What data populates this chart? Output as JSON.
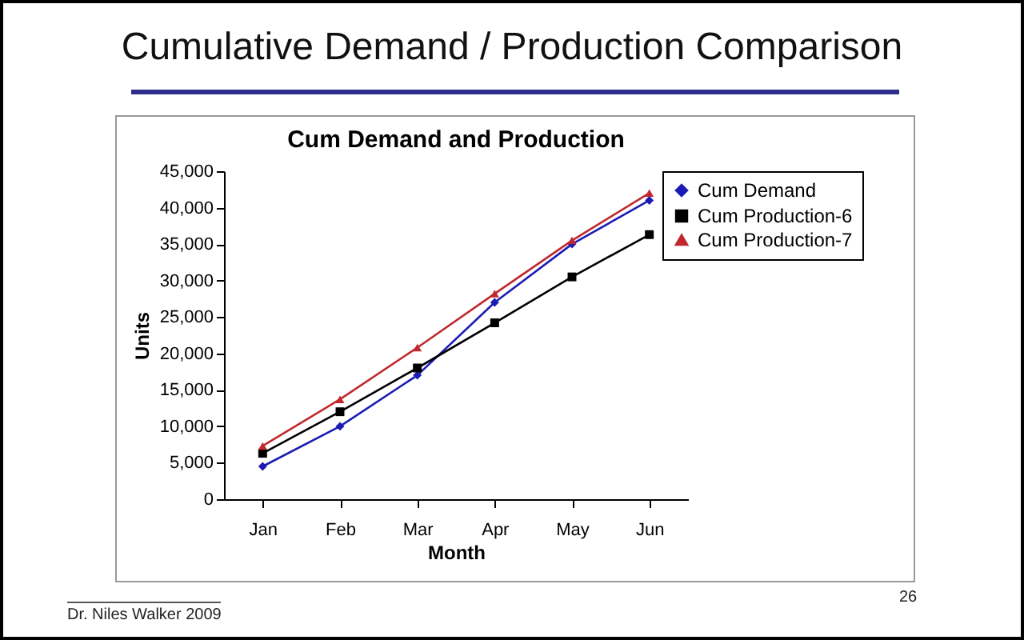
{
  "chart_data": {
    "type": "line",
    "title": "Cumulative Demand / Production Comparison",
    "subtitle": "Cum Demand and Production",
    "xlabel": "Month",
    "ylabel": "Units",
    "categories": [
      "Jan",
      "Feb",
      "Mar",
      "Apr",
      "May",
      "Jun"
    ],
    "series": [
      {
        "name": "Cum Demand",
        "color": "#1c1cb4",
        "marker": "diamond",
        "values": [
          4500,
          10000,
          17000,
          27000,
          35000,
          41000
        ]
      },
      {
        "name": "Cum Production-6",
        "color": "#000000",
        "marker": "square",
        "values": [
          6300,
          12000,
          18000,
          24200,
          30500,
          36300
        ]
      },
      {
        "name": "Cum Production-7",
        "color": "#c0282d",
        "marker": "triangle",
        "values": [
          7300,
          13700,
          20800,
          28200,
          35500,
          42000
        ]
      }
    ],
    "ylim": [
      0,
      45000
    ],
    "yticks": [
      0,
      {
        "value": 5000,
        "label": "5,000"
      },
      {
        "value": 10000,
        "label": "10,000"
      },
      {
        "value": 15000,
        "label": "15,000"
      },
      {
        "value": 20000,
        "label": "20,000"
      },
      {
        "value": 25000,
        "label": "25,000"
      },
      {
        "value": 30000,
        "label": "30,000"
      },
      {
        "value": 35000,
        "label": "35,000"
      },
      {
        "value": 40000,
        "label": "40,000"
      },
      {
        "value": 45000,
        "label": "45,000"
      }
    ],
    "grid": false,
    "legend": "right",
    "line_style": "solid",
    "annotations": [
      "Dr. Niles Walker 2009",
      "26"
    ]
  }
}
